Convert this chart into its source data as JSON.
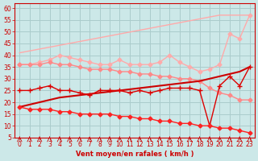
{
  "xlabel": "Vent moyen/en rafales ( km/h )",
  "background_color": "#cce8e8",
  "grid_color": "#aacccc",
  "x": [
    0,
    1,
    2,
    3,
    4,
    5,
    6,
    7,
    8,
    9,
    10,
    11,
    12,
    13,
    14,
    15,
    16,
    17,
    18,
    19,
    20,
    21,
    22,
    23
  ],
  "ylim": [
    5,
    62
  ],
  "yticks": [
    5,
    10,
    15,
    20,
    25,
    30,
    35,
    40,
    45,
    50,
    55,
    60
  ],
  "lines": [
    {
      "color": "#ffaaaa",
      "lw": 1.0,
      "marker": null,
      "y": [
        41,
        41.8,
        42.6,
        43.4,
        44.2,
        45,
        45.8,
        46.6,
        47.4,
        48.2,
        49,
        49.8,
        50.6,
        51.4,
        52.2,
        53,
        53.8,
        54.6,
        55.4,
        56.2,
        57,
        57,
        57,
        57
      ]
    },
    {
      "color": "#ffaaaa",
      "lw": 1.0,
      "marker": "D",
      "markersize": 2.5,
      "y": [
        36,
        36,
        37,
        38,
        40,
        39,
        38,
        37,
        36,
        36,
        38,
        36,
        36,
        36,
        37,
        40,
        37,
        35,
        33,
        34,
        36,
        49,
        47,
        57
      ]
    },
    {
      "color": "#ff8888",
      "lw": 1.0,
      "marker": "D",
      "markersize": 2.5,
      "y": [
        36,
        36,
        36,
        37,
        36,
        36,
        35,
        34,
        34,
        34,
        33,
        33,
        32,
        32,
        31,
        31,
        30,
        30,
        29,
        26,
        24,
        23,
        21,
        21
      ]
    },
    {
      "color": "#cc0000",
      "lw": 1.5,
      "marker": null,
      "y": [
        18,
        19,
        20,
        21,
        22,
        22.5,
        23,
        23.5,
        24,
        24.5,
        25,
        25.5,
        26,
        26.5,
        27,
        27.5,
        28,
        28.5,
        29,
        30,
        31,
        32,
        33,
        35
      ]
    },
    {
      "color": "#dd0000",
      "lw": 1.0,
      "marker": "+",
      "markersize": 4,
      "y": [
        25,
        25,
        26,
        27,
        25,
        25,
        24,
        23,
        25,
        25,
        25,
        24,
        25,
        24,
        25,
        26,
        26,
        26,
        25,
        10,
        27,
        31,
        27,
        35
      ]
    },
    {
      "color": "#ff2222",
      "lw": 1.0,
      "marker": "D",
      "markersize": 2.5,
      "y": [
        18,
        17,
        17,
        17,
        16,
        16,
        15,
        15,
        15,
        15,
        14,
        14,
        13,
        13,
        12,
        12,
        11,
        11,
        10,
        10,
        9,
        9,
        8,
        7
      ]
    }
  ],
  "arrow_color": "#cc0000",
  "axis_fontsize": 6,
  "tick_fontsize": 5.5
}
